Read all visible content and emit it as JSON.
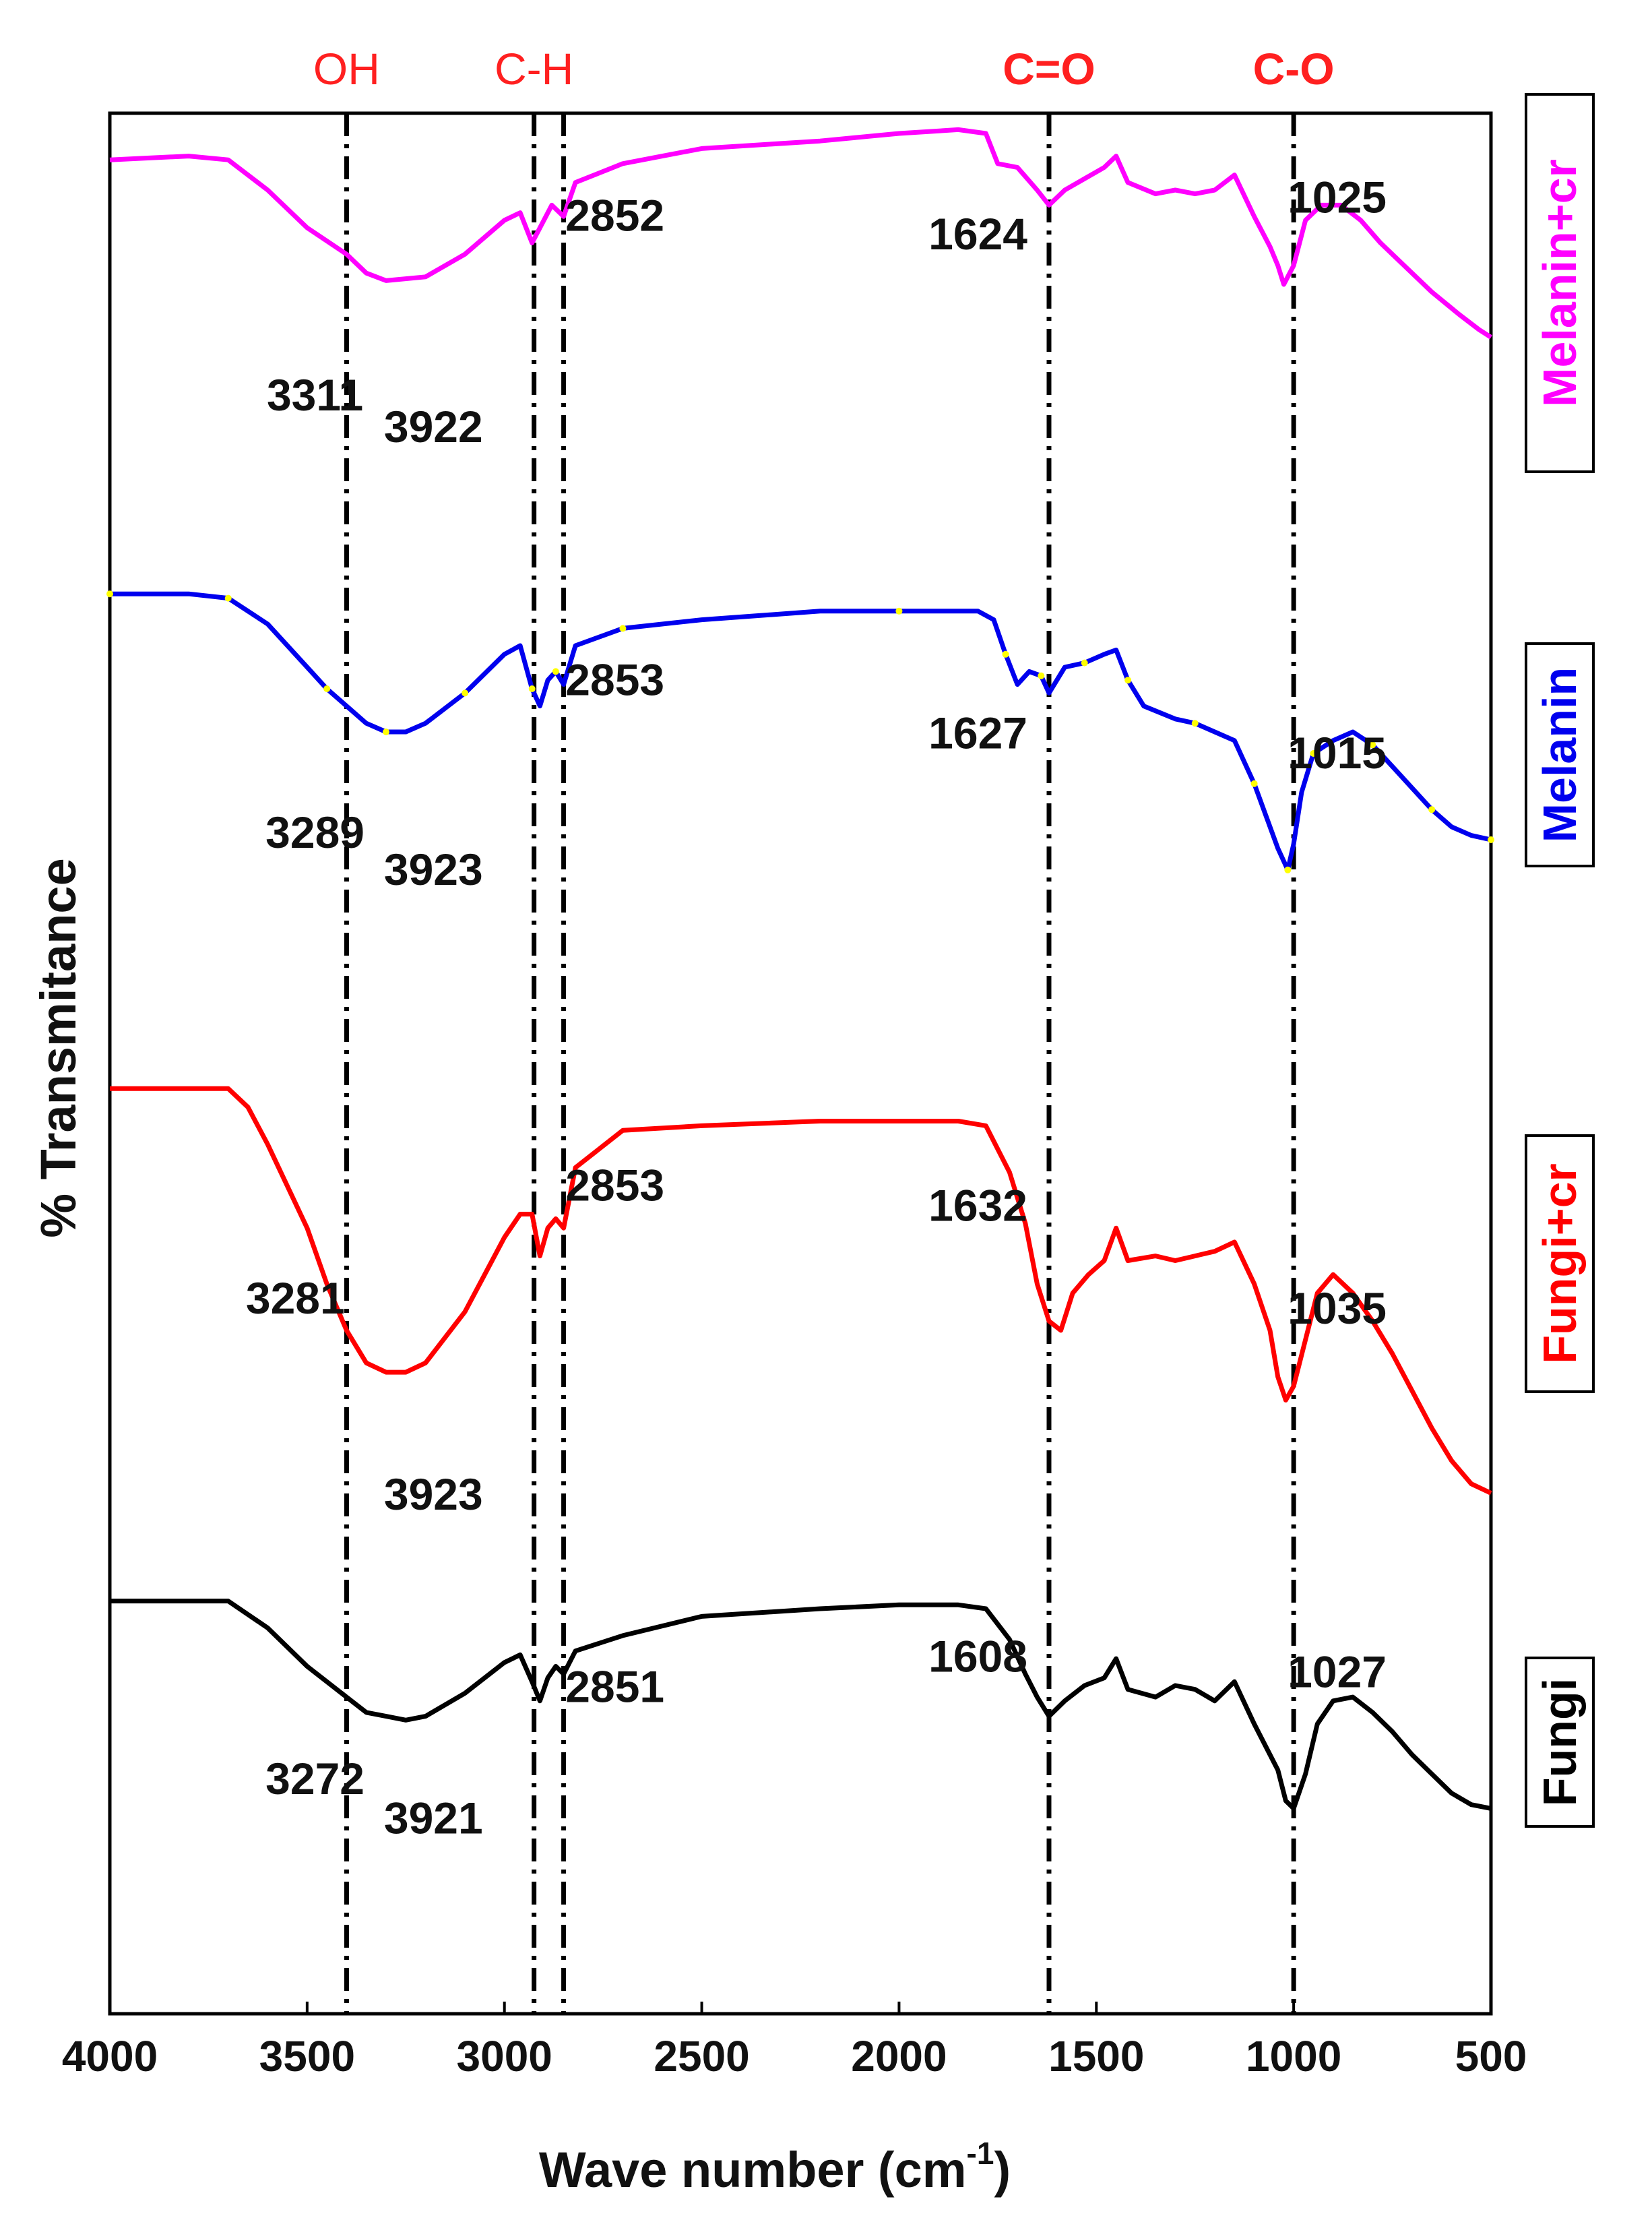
{
  "chart_data": {
    "type": "line",
    "xlabel": "Wave number (cm",
    "xlabel_sup": "-1",
    "xlabel_close": ")",
    "ylabel": "% Transmitance",
    "xlim": [
      4000,
      500
    ],
    "x_ticks": [
      "4000",
      "3500",
      "3000",
      "2500",
      "2000",
      "1500",
      "1000",
      "500"
    ],
    "x_tick_values": [
      4000,
      3500,
      3000,
      2500,
      2000,
      1500,
      1000,
      500
    ],
    "grid": false,
    "legend": "right side, rotated boxed labels",
    "bands": [
      {
        "label": "OH",
        "x": 3400,
        "bold": false
      },
      {
        "label": "C-H",
        "x": 2925,
        "bold": false
      },
      {
        "label": "",
        "x": 2850,
        "bold": false
      },
      {
        "label": "C=O",
        "x": 1620,
        "bold": true
      },
      {
        "label": "C-O",
        "x": 1000,
        "bold": true
      }
    ],
    "series": [
      {
        "name": "Melanin+cr",
        "color": "#ff00ff",
        "points": [
          [
            4000,
            0.88
          ],
          [
            3900,
            0.885
          ],
          [
            3800,
            0.89
          ],
          [
            3700,
            0.88
          ],
          [
            3600,
            0.8
          ],
          [
            3500,
            0.7
          ],
          [
            3400,
            0.63
          ],
          [
            3350,
            0.58
          ],
          [
            3300,
            0.56
          ],
          [
            3200,
            0.57
          ],
          [
            3100,
            0.63
          ],
          [
            3000,
            0.72
          ],
          [
            2960,
            0.74
          ],
          [
            2930,
            0.66
          ],
          [
            2910,
            0.7
          ],
          [
            2880,
            0.76
          ],
          [
            2850,
            0.73
          ],
          [
            2820,
            0.82
          ],
          [
            2700,
            0.87
          ],
          [
            2500,
            0.91
          ],
          [
            2200,
            0.93
          ],
          [
            2000,
            0.95
          ],
          [
            1850,
            0.96
          ],
          [
            1780,
            0.95
          ],
          [
            1750,
            0.87
          ],
          [
            1700,
            0.86
          ],
          [
            1650,
            0.8
          ],
          [
            1620,
            0.76
          ],
          [
            1580,
            0.8
          ],
          [
            1530,
            0.83
          ],
          [
            1480,
            0.86
          ],
          [
            1450,
            0.89
          ],
          [
            1420,
            0.82
          ],
          [
            1350,
            0.79
          ],
          [
            1300,
            0.8
          ],
          [
            1250,
            0.79
          ],
          [
            1200,
            0.8
          ],
          [
            1150,
            0.84
          ],
          [
            1100,
            0.73
          ],
          [
            1060,
            0.65
          ],
          [
            1040,
            0.6
          ],
          [
            1025,
            0.55
          ],
          [
            1000,
            0.6
          ],
          [
            970,
            0.72
          ],
          [
            930,
            0.76
          ],
          [
            880,
            0.76
          ],
          [
            830,
            0.72
          ],
          [
            780,
            0.66
          ],
          [
            720,
            0.6
          ],
          [
            650,
            0.53
          ],
          [
            580,
            0.47
          ],
          [
            530,
            0.43
          ],
          [
            500,
            0.41
          ]
        ],
        "peaks": [
          {
            "label": "3311",
            "x": 3480,
            "dy": 0.3
          },
          {
            "label": "3922",
            "x": 3180,
            "dy": 0.28
          },
          {
            "label": "2852",
            "x": 2720,
            "dy": 0.0
          },
          {
            "label": "1624",
            "x": 1800,
            "dy": 0.14
          },
          {
            "label": "1025",
            "x": 890,
            "dy": -0.15
          }
        ]
      },
      {
        "name": "Melanin",
        "color": "#0000ee",
        "marker_color": "#ffff00",
        "points": [
          [
            4000,
            0.92
          ],
          [
            3900,
            0.92
          ],
          [
            3800,
            0.92
          ],
          [
            3700,
            0.91
          ],
          [
            3600,
            0.85
          ],
          [
            3500,
            0.75
          ],
          [
            3450,
            0.7
          ],
          [
            3400,
            0.66
          ],
          [
            3350,
            0.62
          ],
          [
            3300,
            0.6
          ],
          [
            3250,
            0.6
          ],
          [
            3200,
            0.62
          ],
          [
            3100,
            0.69
          ],
          [
            3000,
            0.78
          ],
          [
            2960,
            0.8
          ],
          [
            2930,
            0.7
          ],
          [
            2910,
            0.66
          ],
          [
            2890,
            0.72
          ],
          [
            2870,
            0.74
          ],
          [
            2850,
            0.71
          ],
          [
            2820,
            0.8
          ],
          [
            2700,
            0.84
          ],
          [
            2500,
            0.86
          ],
          [
            2200,
            0.88
          ],
          [
            2000,
            0.88
          ],
          [
            1800,
            0.88
          ],
          [
            1760,
            0.86
          ],
          [
            1730,
            0.78
          ],
          [
            1700,
            0.71
          ],
          [
            1670,
            0.74
          ],
          [
            1640,
            0.73
          ],
          [
            1620,
            0.69
          ],
          [
            1580,
            0.75
          ],
          [
            1530,
            0.76
          ],
          [
            1480,
            0.78
          ],
          [
            1450,
            0.79
          ],
          [
            1420,
            0.72
          ],
          [
            1380,
            0.66
          ],
          [
            1300,
            0.63
          ],
          [
            1250,
            0.62
          ],
          [
            1200,
            0.6
          ],
          [
            1150,
            0.58
          ],
          [
            1100,
            0.48
          ],
          [
            1060,
            0.38
          ],
          [
            1040,
            0.33
          ],
          [
            1015,
            0.28
          ],
          [
            1000,
            0.34
          ],
          [
            980,
            0.46
          ],
          [
            950,
            0.55
          ],
          [
            900,
            0.58
          ],
          [
            850,
            0.6
          ],
          [
            800,
            0.57
          ],
          [
            750,
            0.52
          ],
          [
            700,
            0.47
          ],
          [
            650,
            0.42
          ],
          [
            600,
            0.38
          ],
          [
            550,
            0.36
          ],
          [
            500,
            0.35
          ]
        ],
        "peaks": [
          {
            "label": "3289",
            "x": 3480,
            "dy": 0.25
          },
          {
            "label": "3923",
            "x": 3180,
            "dy": 0.24
          },
          {
            "label": "2853",
            "x": 2720,
            "dy": 0.0
          },
          {
            "label": "1627",
            "x": 1800,
            "dy": 0.17
          },
          {
            "label": "1015",
            "x": 890,
            "dy": -0.08
          }
        ]
      },
      {
        "name": "Fungi+cr",
        "color": "#ff0000",
        "points": [
          [
            4000,
            0.92
          ],
          [
            3900,
            0.92
          ],
          [
            3800,
            0.92
          ],
          [
            3700,
            0.92
          ],
          [
            3650,
            0.88
          ],
          [
            3600,
            0.8
          ],
          [
            3500,
            0.62
          ],
          [
            3450,
            0.5
          ],
          [
            3400,
            0.4
          ],
          [
            3350,
            0.33
          ],
          [
            3300,
            0.31
          ],
          [
            3250,
            0.31
          ],
          [
            3200,
            0.33
          ],
          [
            3100,
            0.44
          ],
          [
            3000,
            0.6
          ],
          [
            2960,
            0.65
          ],
          [
            2930,
            0.65
          ],
          [
            2910,
            0.56
          ],
          [
            2890,
            0.62
          ],
          [
            2870,
            0.64
          ],
          [
            2850,
            0.62
          ],
          [
            2820,
            0.75
          ],
          [
            2700,
            0.83
          ],
          [
            2500,
            0.84
          ],
          [
            2200,
            0.85
          ],
          [
            2000,
            0.85
          ],
          [
            1850,
            0.85
          ],
          [
            1780,
            0.84
          ],
          [
            1720,
            0.74
          ],
          [
            1680,
            0.63
          ],
          [
            1650,
            0.5
          ],
          [
            1620,
            0.42
          ],
          [
            1590,
            0.4
          ],
          [
            1560,
            0.48
          ],
          [
            1520,
            0.52
          ],
          [
            1480,
            0.55
          ],
          [
            1450,
            0.62
          ],
          [
            1420,
            0.55
          ],
          [
            1350,
            0.56
          ],
          [
            1300,
            0.55
          ],
          [
            1250,
            0.56
          ],
          [
            1200,
            0.57
          ],
          [
            1150,
            0.59
          ],
          [
            1100,
            0.5
          ],
          [
            1060,
            0.4
          ],
          [
            1040,
            0.3
          ],
          [
            1020,
            0.25
          ],
          [
            1000,
            0.28
          ],
          [
            970,
            0.38
          ],
          [
            940,
            0.48
          ],
          [
            900,
            0.52
          ],
          [
            850,
            0.48
          ],
          [
            800,
            0.42
          ],
          [
            750,
            0.35
          ],
          [
            700,
            0.27
          ],
          [
            650,
            0.19
          ],
          [
            600,
            0.12
          ],
          [
            550,
            0.07
          ],
          [
            500,
            0.05
          ]
        ],
        "peaks": [
          {
            "label": "3281",
            "x": 3530,
            "dy": 0.1
          },
          {
            "label": "3923",
            "x": 3180,
            "dy": 0.2
          },
          {
            "label": "2853",
            "x": 2720,
            "dy": 0.0
          },
          {
            "label": "1632",
            "x": 1800,
            "dy": 0.07
          },
          {
            "label": "1035",
            "x": 890,
            "dy": -0.04
          }
        ]
      },
      {
        "name": "Fungi",
        "color": "#000000",
        "points": [
          [
            4000,
            0.92
          ],
          [
            3900,
            0.92
          ],
          [
            3800,
            0.92
          ],
          [
            3700,
            0.92
          ],
          [
            3600,
            0.85
          ],
          [
            3500,
            0.75
          ],
          [
            3400,
            0.67
          ],
          [
            3350,
            0.63
          ],
          [
            3300,
            0.62
          ],
          [
            3250,
            0.61
          ],
          [
            3200,
            0.62
          ],
          [
            3100,
            0.68
          ],
          [
            3000,
            0.76
          ],
          [
            2960,
            0.78
          ],
          [
            2930,
            0.71
          ],
          [
            2910,
            0.66
          ],
          [
            2890,
            0.72
          ],
          [
            2870,
            0.75
          ],
          [
            2850,
            0.73
          ],
          [
            2820,
            0.79
          ],
          [
            2700,
            0.83
          ],
          [
            2500,
            0.88
          ],
          [
            2200,
            0.9
          ],
          [
            2000,
            0.91
          ],
          [
            1850,
            0.91
          ],
          [
            1780,
            0.9
          ],
          [
            1720,
            0.82
          ],
          [
            1680,
            0.73
          ],
          [
            1650,
            0.67
          ],
          [
            1620,
            0.62
          ],
          [
            1580,
            0.66
          ],
          [
            1530,
            0.7
          ],
          [
            1480,
            0.72
          ],
          [
            1450,
            0.77
          ],
          [
            1420,
            0.69
          ],
          [
            1350,
            0.67
          ],
          [
            1300,
            0.7
          ],
          [
            1250,
            0.69
          ],
          [
            1200,
            0.66
          ],
          [
            1150,
            0.71
          ],
          [
            1100,
            0.6
          ],
          [
            1060,
            0.52
          ],
          [
            1040,
            0.48
          ],
          [
            1020,
            0.4
          ],
          [
            1000,
            0.38
          ],
          [
            970,
            0.47
          ],
          [
            940,
            0.6
          ],
          [
            900,
            0.66
          ],
          [
            850,
            0.67
          ],
          [
            800,
            0.63
          ],
          [
            750,
            0.58
          ],
          [
            700,
            0.52
          ],
          [
            650,
            0.47
          ],
          [
            600,
            0.42
          ],
          [
            550,
            0.39
          ],
          [
            500,
            0.38
          ]
        ],
        "peaks": [
          {
            "label": "3272",
            "x": 3480,
            "dy": 0.15
          },
          {
            "label": "3921",
            "x": 3180,
            "dy": 0.15
          },
          {
            "label": "2851",
            "x": 2720,
            "dy": 0.0
          },
          {
            "label": "1608",
            "x": 1800,
            "dy": 0.0
          },
          {
            "label": "1027",
            "x": 890,
            "dy": -0.2
          }
        ]
      }
    ]
  }
}
